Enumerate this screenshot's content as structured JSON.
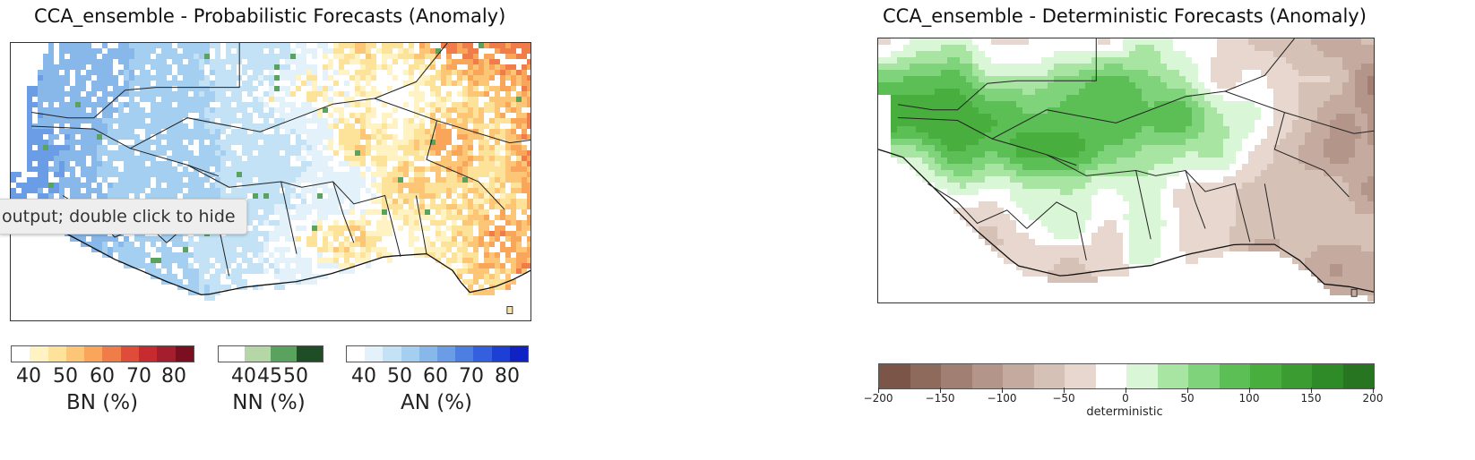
{
  "left_title": "CCA_ensemble - Probabilistic Forecasts (Anomaly)",
  "right_title": "CCA_ensemble - Deterministic Forecasts (Anomaly)",
  "tooltip_text": "output; double click to hide",
  "chart_data": [
    {
      "type": "heatmap",
      "title": "CCA_ensemble - Probabilistic Forecasts (Anomaly)",
      "description_of_field": "tercile probability map over West Africa; blue (AN) dominant in west/central, yellow-orange (BN) dominant in east, sparse green (NN) pixels",
      "colorbars": [
        {
          "label": "BN (%)",
          "ticks": [
            "40",
            "50",
            "60",
            "70",
            "80"
          ],
          "colors": [
            "#ffffff",
            "#fff3c4",
            "#fde39a",
            "#fcc676",
            "#f9a55a",
            "#f07c4a",
            "#df4c3a",
            "#c72b30",
            "#a51e2d",
            "#7a0f1f"
          ]
        },
        {
          "label": "NN (%)",
          "ticks": [
            "40",
            "45",
            "50"
          ],
          "colors": [
            "#ffffff",
            "#b5d6a7",
            "#5aa35f",
            "#1f4d26"
          ]
        },
        {
          "label": "AN (%)",
          "ticks": [
            "40",
            "50",
            "60",
            "70",
            "80"
          ],
          "colors": [
            "#ffffff",
            "#e3f1fb",
            "#c3e2f6",
            "#a5cff0",
            "#88b8ea",
            "#6a9de6",
            "#4d7ee2",
            "#3460df",
            "#1e3fd6",
            "#0f22c4"
          ]
        }
      ]
    },
    {
      "type": "heatmap",
      "title": "CCA_ensemble - Deterministic Forecasts (Anomaly)",
      "description_of_field": "deterministic anomaly over West Africa; green positive in northwest/central band, brown negative in coastal south and east",
      "colorbar": {
        "label": "deterministic",
        "range": [
          -200,
          200
        ],
        "ticks": [
          "−200",
          "−150",
          "−100",
          "−50",
          "0",
          "50",
          "100",
          "150",
          "200"
        ],
        "colors": [
          "#7a5548",
          "#8e6a5d",
          "#a18073",
          "#b39689",
          "#c5ab9f",
          "#d6c1b6",
          "#e7d7cf",
          "#ffffff",
          "#d9f7d6",
          "#a8e5a2",
          "#7fd37a",
          "#5cbf55",
          "#48ae3d",
          "#3a9c31",
          "#2f8a28",
          "#277520"
        ]
      }
    }
  ]
}
